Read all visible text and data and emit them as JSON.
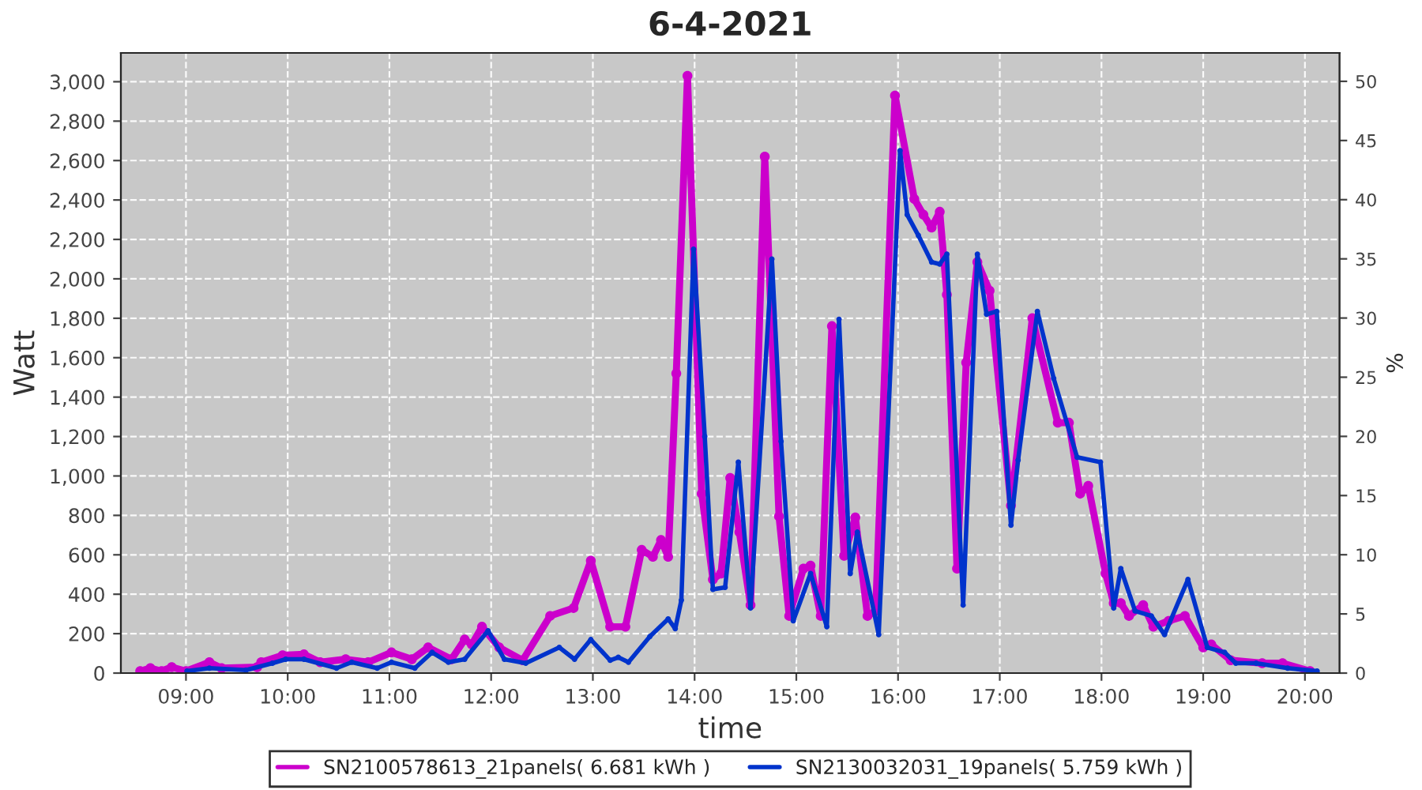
{
  "chart_data": {
    "type": "line",
    "title": "6-4-2021",
    "xlabel": "time",
    "ylabel": "Watt",
    "y2label": "%",
    "xlim": [
      8.36,
      20.34
    ],
    "ylim": [
      0,
      3146
    ],
    "y2lim": [
      0,
      52.4
    ],
    "xticks": [
      {
        "value": 9,
        "label": "09:00"
      },
      {
        "value": 10,
        "label": "10:00"
      },
      {
        "value": 11,
        "label": "11:00"
      },
      {
        "value": 12,
        "label": "12:00"
      },
      {
        "value": 13,
        "label": "13:00"
      },
      {
        "value": 14,
        "label": "14:00"
      },
      {
        "value": 15,
        "label": "15:00"
      },
      {
        "value": 16,
        "label": "16:00"
      },
      {
        "value": 17,
        "label": "17:00"
      },
      {
        "value": 18,
        "label": "18:00"
      },
      {
        "value": 19,
        "label": "19:00"
      },
      {
        "value": 20,
        "label": "20:00"
      }
    ],
    "yticks": [
      0,
      200,
      400,
      600,
      800,
      {
        "value": 1000,
        "label": "1,000"
      },
      {
        "value": 1200,
        "label": "1,200"
      },
      {
        "value": 1400,
        "label": "1,400"
      },
      {
        "value": 1600,
        "label": "1,600"
      },
      {
        "value": 1800,
        "label": "1,800"
      },
      {
        "value": 2000,
        "label": "2,000"
      },
      {
        "value": 2200,
        "label": "2,200"
      },
      {
        "value": 2400,
        "label": "2,400"
      },
      {
        "value": 2600,
        "label": "2,600"
      },
      {
        "value": 2800,
        "label": "2,800"
      },
      {
        "value": 3000,
        "label": "3,000"
      }
    ],
    "y2ticks": [
      0,
      5,
      10,
      15,
      20,
      25,
      30,
      35,
      40,
      45,
      50
    ],
    "grid": true,
    "legend": "bottom",
    "marker": "circle",
    "line_style": "solid",
    "series": [
      {
        "name": "SN2100578613_21panels( 6.681 kWh )",
        "color": "#cc00cc",
        "x": [
          8.55,
          8.65,
          8.76,
          8.86,
          9.0,
          9.23,
          9.35,
          9.7,
          9.74,
          9.95,
          10.16,
          10.32,
          10.57,
          10.79,
          11.02,
          11.22,
          11.38,
          11.61,
          11.74,
          11.81,
          11.91,
          12.08,
          12.31,
          12.58,
          12.81,
          12.98,
          13.17,
          13.32,
          13.48,
          13.59,
          13.67,
          13.74,
          13.82,
          13.93,
          14.07,
          14.18,
          14.26,
          14.35,
          14.44,
          14.55,
          14.69,
          14.83,
          14.93,
          15.07,
          15.14,
          15.24,
          15.35,
          15.47,
          15.58,
          15.7,
          15.78,
          15.97,
          16.16,
          16.25,
          16.33,
          16.41,
          16.48,
          16.58,
          16.67,
          16.78,
          16.9,
          17.11,
          17.32,
          17.57,
          17.68,
          17.79,
          17.87,
          18.04,
          18.12,
          18.19,
          18.27,
          18.41,
          18.51,
          18.66,
          18.82,
          19.0,
          19.08,
          19.27,
          19.58,
          19.78,
          20.05
        ],
        "values": [
          10,
          25,
          10,
          30,
          10,
          55,
          25,
          30,
          55,
          90,
          95,
          55,
          70,
          55,
          105,
          70,
          130,
          70,
          170,
          145,
          235,
          130,
          65,
          290,
          330,
          570,
          235,
          235,
          625,
          590,
          675,
          590,
          1520,
          3030,
          910,
          475,
          505,
          990,
          715,
          345,
          2620,
          795,
          290,
          530,
          545,
          290,
          1760,
          595,
          790,
          290,
          315,
          2930,
          2405,
          2325,
          2260,
          2340,
          1920,
          530,
          1575,
          2085,
          1940,
          850,
          1800,
          1270,
          1270,
          910,
          950,
          505,
          355,
          355,
          290,
          345,
          235,
          265,
          290,
          130,
          145,
          65,
          50,
          50,
          10
        ]
      },
      {
        "name": "SN2130032031_19panels( 5.759 kWh )",
        "color": "#0033cc",
        "x": [
          9.01,
          9.23,
          9.59,
          9.85,
          9.98,
          10.16,
          10.48,
          10.63,
          10.88,
          11.02,
          11.25,
          11.42,
          11.58,
          11.74,
          11.97,
          12.13,
          12.34,
          12.67,
          12.82,
          12.98,
          13.17,
          13.25,
          13.35,
          13.56,
          13.74,
          13.81,
          13.87,
          13.99,
          14.1,
          14.18,
          14.3,
          14.43,
          14.55,
          14.76,
          14.85,
          14.97,
          15.14,
          15.3,
          15.42,
          15.53,
          15.6,
          15.81,
          16.02,
          16.09,
          16.2,
          16.33,
          16.41,
          16.48,
          16.64,
          16.78,
          16.87,
          16.97,
          17.11,
          17.18,
          17.37,
          17.53,
          17.76,
          17.99,
          18.12,
          18.19,
          18.33,
          18.49,
          18.62,
          18.85,
          19.04,
          19.21,
          19.32,
          19.52,
          19.83,
          20.12
        ],
        "values": [
          10,
          25,
          15,
          50,
          70,
          70,
          25,
          55,
          25,
          55,
          25,
          105,
          55,
          70,
          215,
          70,
          50,
          130,
          70,
          170,
          65,
          80,
          55,
          185,
          275,
          225,
          370,
          2150,
          1200,
          425,
          435,
          1070,
          330,
          2100,
          1175,
          265,
          505,
          235,
          1795,
          505,
          715,
          195,
          2650,
          2325,
          2220,
          2085,
          2075,
          2125,
          345,
          2125,
          1820,
          1835,
          750,
          1080,
          1835,
          1495,
          1095,
          1070,
          330,
          530,
          315,
          290,
          195,
          475,
          130,
          105,
          50,
          50,
          25,
          10
        ]
      }
    ]
  }
}
